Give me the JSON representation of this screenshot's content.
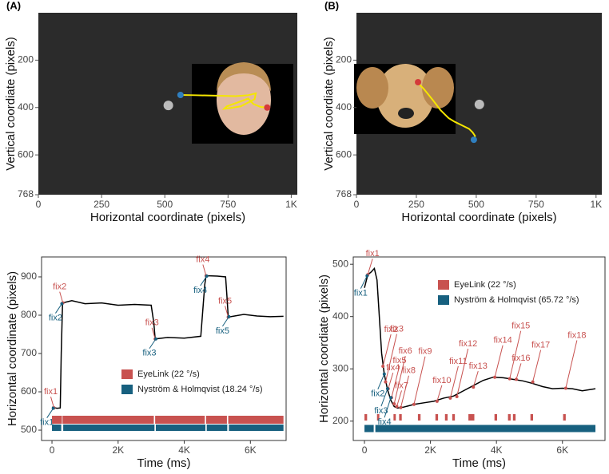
{
  "chart_data": [
    {
      "type": "gaze",
      "panel_label": "(A)",
      "xlabel": "Horizontal coordinate (pixels)",
      "ylabel": "Vertical coordiate (pixels)",
      "xlim": [
        0,
        1024
      ],
      "ylim": [
        0,
        768
      ],
      "y_inverted": true,
      "xticks": [
        0,
        250,
        500,
        750,
        {
          "value": 1000,
          "label": "1K"
        }
      ],
      "yticks": [
        200,
        400,
        600,
        768
      ],
      "color": "#f5e600",
      "start_color": "#2f7fbf",
      "end_color": "#d43a3a",
      "target_color": "#bbbbbb",
      "x": [
        562,
        620,
        700,
        780,
        830,
        860,
        855,
        800,
        760,
        735,
        745,
        790,
        830,
        850,
        880,
        905
      ],
      "y": [
        347,
        348,
        350,
        352,
        348,
        340,
        365,
        395,
        402,
        405,
        395,
        378,
        362,
        385,
        398,
        400
      ],
      "target": {
        "x": 514,
        "y": 391
      }
    },
    {
      "type": "gaze",
      "panel_label": "(B)",
      "xlabel": "Horizontal coordinate (pixels)",
      "ylabel": "Vertical coordiate (pixels)",
      "xlim": [
        0,
        1024
      ],
      "ylim": [
        0,
        768
      ],
      "y_inverted": true,
      "xticks": [
        0,
        250,
        500,
        750,
        {
          "value": 1000,
          "label": "1K"
        }
      ],
      "yticks": [
        200,
        400,
        600,
        768
      ],
      "color": "#f5e600",
      "start_color": "#2f7fbf",
      "end_color": "#d43a3a",
      "target_color": "#bbbbbb",
      "x": [
        490,
        495,
        485,
        470,
        440,
        410,
        385,
        370,
        350,
        335,
        320,
        300,
        280,
        265,
        258,
        252,
        262,
        257
      ],
      "y": [
        536,
        520,
        505,
        490,
        475,
        460,
        445,
        430,
        410,
        390,
        370,
        345,
        320,
        305,
        298,
        292,
        286,
        293
      ],
      "target": {
        "x": 513,
        "y": 387
      }
    },
    {
      "type": "line",
      "xlabel": "Time (ms)",
      "ylabel": "Horizontal coordinate (pixels)",
      "xlim": [
        -315,
        7080
      ],
      "ylim": [
        473,
        952
      ],
      "xticks": [
        0,
        {
          "value": 2000,
          "label": "2K"
        },
        {
          "value": 4000,
          "label": "4K"
        },
        {
          "value": 6000,
          "label": "6K"
        }
      ],
      "yticks": [
        500,
        600,
        700,
        800,
        900
      ],
      "color": "#000000",
      "x": [
        0,
        150,
        250,
        280,
        320,
        600,
        1000,
        1500,
        2000,
        2500,
        3000,
        3080,
        3120,
        3500,
        4000,
        4500,
        4620,
        4660,
        5000,
        5250,
        5290,
        5330,
        5800,
        6200,
        6600,
        7000
      ],
      "values": [
        560,
        557,
        558,
        700,
        832,
        838,
        830,
        832,
        826,
        828,
        826,
        780,
        738,
        742,
        740,
        745,
        880,
        903,
        902,
        900,
        850,
        795,
        802,
        798,
        796,
        797
      ],
      "detectors": [
        {
          "name": "EyeLink (22 °/s)",
          "color": "#c85250",
          "intervals": [
            [
              0,
              300
            ],
            [
              320,
              3080
            ],
            [
              3120,
              4620
            ],
            [
              4660,
              5290
            ],
            [
              5330,
              7000
            ]
          ],
          "fixations": [
            {
              "label": "fix1",
              "x": 60,
              "y": 558
            },
            {
              "label": "fix2",
              "x": 330,
              "y": 832
            },
            {
              "label": "fix3",
              "x": 3120,
              "y": 738
            },
            {
              "label": "fix4",
              "x": 4660,
              "y": 903
            },
            {
              "label": "fix5",
              "x": 5330,
              "y": 795
            }
          ]
        },
        {
          "name": "Nyström & Holmqvist (18.24 °/s)",
          "color": "#17607f",
          "intervals": [
            [
              0,
              280
            ],
            [
              340,
              3100
            ],
            [
              3140,
              4640
            ],
            [
              4680,
              5300
            ],
            [
              5350,
              7000
            ]
          ],
          "fixations": [
            {
              "label": "fix1",
              "x": 40,
              "y": 557
            },
            {
              "label": "fix2",
              "x": 300,
              "y": 830
            },
            {
              "label": "fix3",
              "x": 3140,
              "y": 738
            },
            {
              "label": "fix4",
              "x": 4680,
              "y": 902
            },
            {
              "label": "fix5",
              "x": 5350,
              "y": 796
            }
          ]
        }
      ]
    },
    {
      "type": "line",
      "xlabel": "Time (ms)",
      "ylabel": "Horizontal coordiate (pixels)",
      "xlim": [
        -340,
        7290
      ],
      "ylim": [
        163,
        514
      ],
      "xticks": [
        0,
        {
          "value": 2000,
          "label": "2K"
        },
        {
          "value": 4000,
          "label": "4K"
        },
        {
          "value": 6000,
          "label": "6K"
        }
      ],
      "yticks": [
        200,
        300,
        400,
        500
      ],
      "color": "#000000",
      "x": [
        0,
        100,
        200,
        300,
        380,
        450,
        520,
        600,
        700,
        800,
        900,
        1000,
        1200,
        1500,
        1800,
        2100,
        2400,
        2700,
        3000,
        3300,
        3600,
        3900,
        4200,
        4500,
        4800,
        5100,
        5400,
        5700,
        6000,
        6300,
        6600,
        7000
      ],
      "values": [
        455,
        480,
        485,
        492,
        470,
        400,
        330,
        290,
        260,
        240,
        228,
        225,
        227,
        232,
        235,
        238,
        244,
        248,
        258,
        268,
        278,
        284,
        283,
        280,
        277,
        272,
        266,
        262,
        263,
        262,
        258,
        262
      ],
      "detectors": [
        {
          "name": "EyeLink (22 °/s)",
          "color": "#c85250",
          "intervals": [
            [
              0,
              80
            ],
            [
              380,
              450
            ],
            [
              880,
              950
            ],
            [
              1050,
              1130
            ],
            [
              1620,
              1700
            ],
            [
              2150,
              2230
            ],
            [
              2440,
              2520
            ],
            [
              2660,
              2740
            ],
            [
              3150,
              3330
            ],
            [
              3940,
              4020
            ],
            [
              4350,
              4430
            ],
            [
              4500,
              4580
            ],
            [
              5030,
              5110
            ],
            [
              6020,
              6100
            ]
          ],
          "fixations": [
            {
              "label": "fix1",
              "x": 100,
              "y": 480
            },
            {
              "label": "fix2",
              "x": 560,
              "y": 305
            },
            {
              "label": "fix3",
              "x": 640,
              "y": 275
            },
            {
              "label": "fix4",
              "x": 720,
              "y": 262
            },
            {
              "label": "fix5",
              "x": 820,
              "y": 245
            },
            {
              "label": "fix6",
              "x": 900,
              "y": 233
            },
            {
              "label": "fix7",
              "x": 980,
              "y": 228
            },
            {
              "label": "fix8",
              "x": 1100,
              "y": 226
            },
            {
              "label": "fix9",
              "x": 1500,
              "y": 232
            },
            {
              "label": "fix10",
              "x": 2200,
              "y": 238
            },
            {
              "label": "fix11",
              "x": 2600,
              "y": 244
            },
            {
              "label": "fix12",
              "x": 2800,
              "y": 247
            },
            {
              "label": "fix13",
              "x": 3300,
              "y": 265
            },
            {
              "label": "fix14",
              "x": 3950,
              "y": 284
            },
            {
              "label": "fix15",
              "x": 4400,
              "y": 281
            },
            {
              "label": "fix16",
              "x": 4600,
              "y": 280
            },
            {
              "label": "fix17",
              "x": 5100,
              "y": 275
            },
            {
              "label": "fix18",
              "x": 6100,
              "y": 263
            }
          ]
        },
        {
          "name": "Nyström & Holmqvist (65.72 °/s)",
          "color": "#17607f",
          "intervals": [
            [
              0,
              280
            ],
            [
              330,
              7000
            ]
          ],
          "fixations": [
            {
              "label": "fix1",
              "x": 80,
              "y": 478
            },
            {
              "label": "fix2",
              "x": 600,
              "y": 290
            },
            {
              "label": "fix3",
              "x": 700,
              "y": 262
            },
            {
              "label": "fix4",
              "x": 800,
              "y": 245
            }
          ]
        }
      ]
    }
  ]
}
